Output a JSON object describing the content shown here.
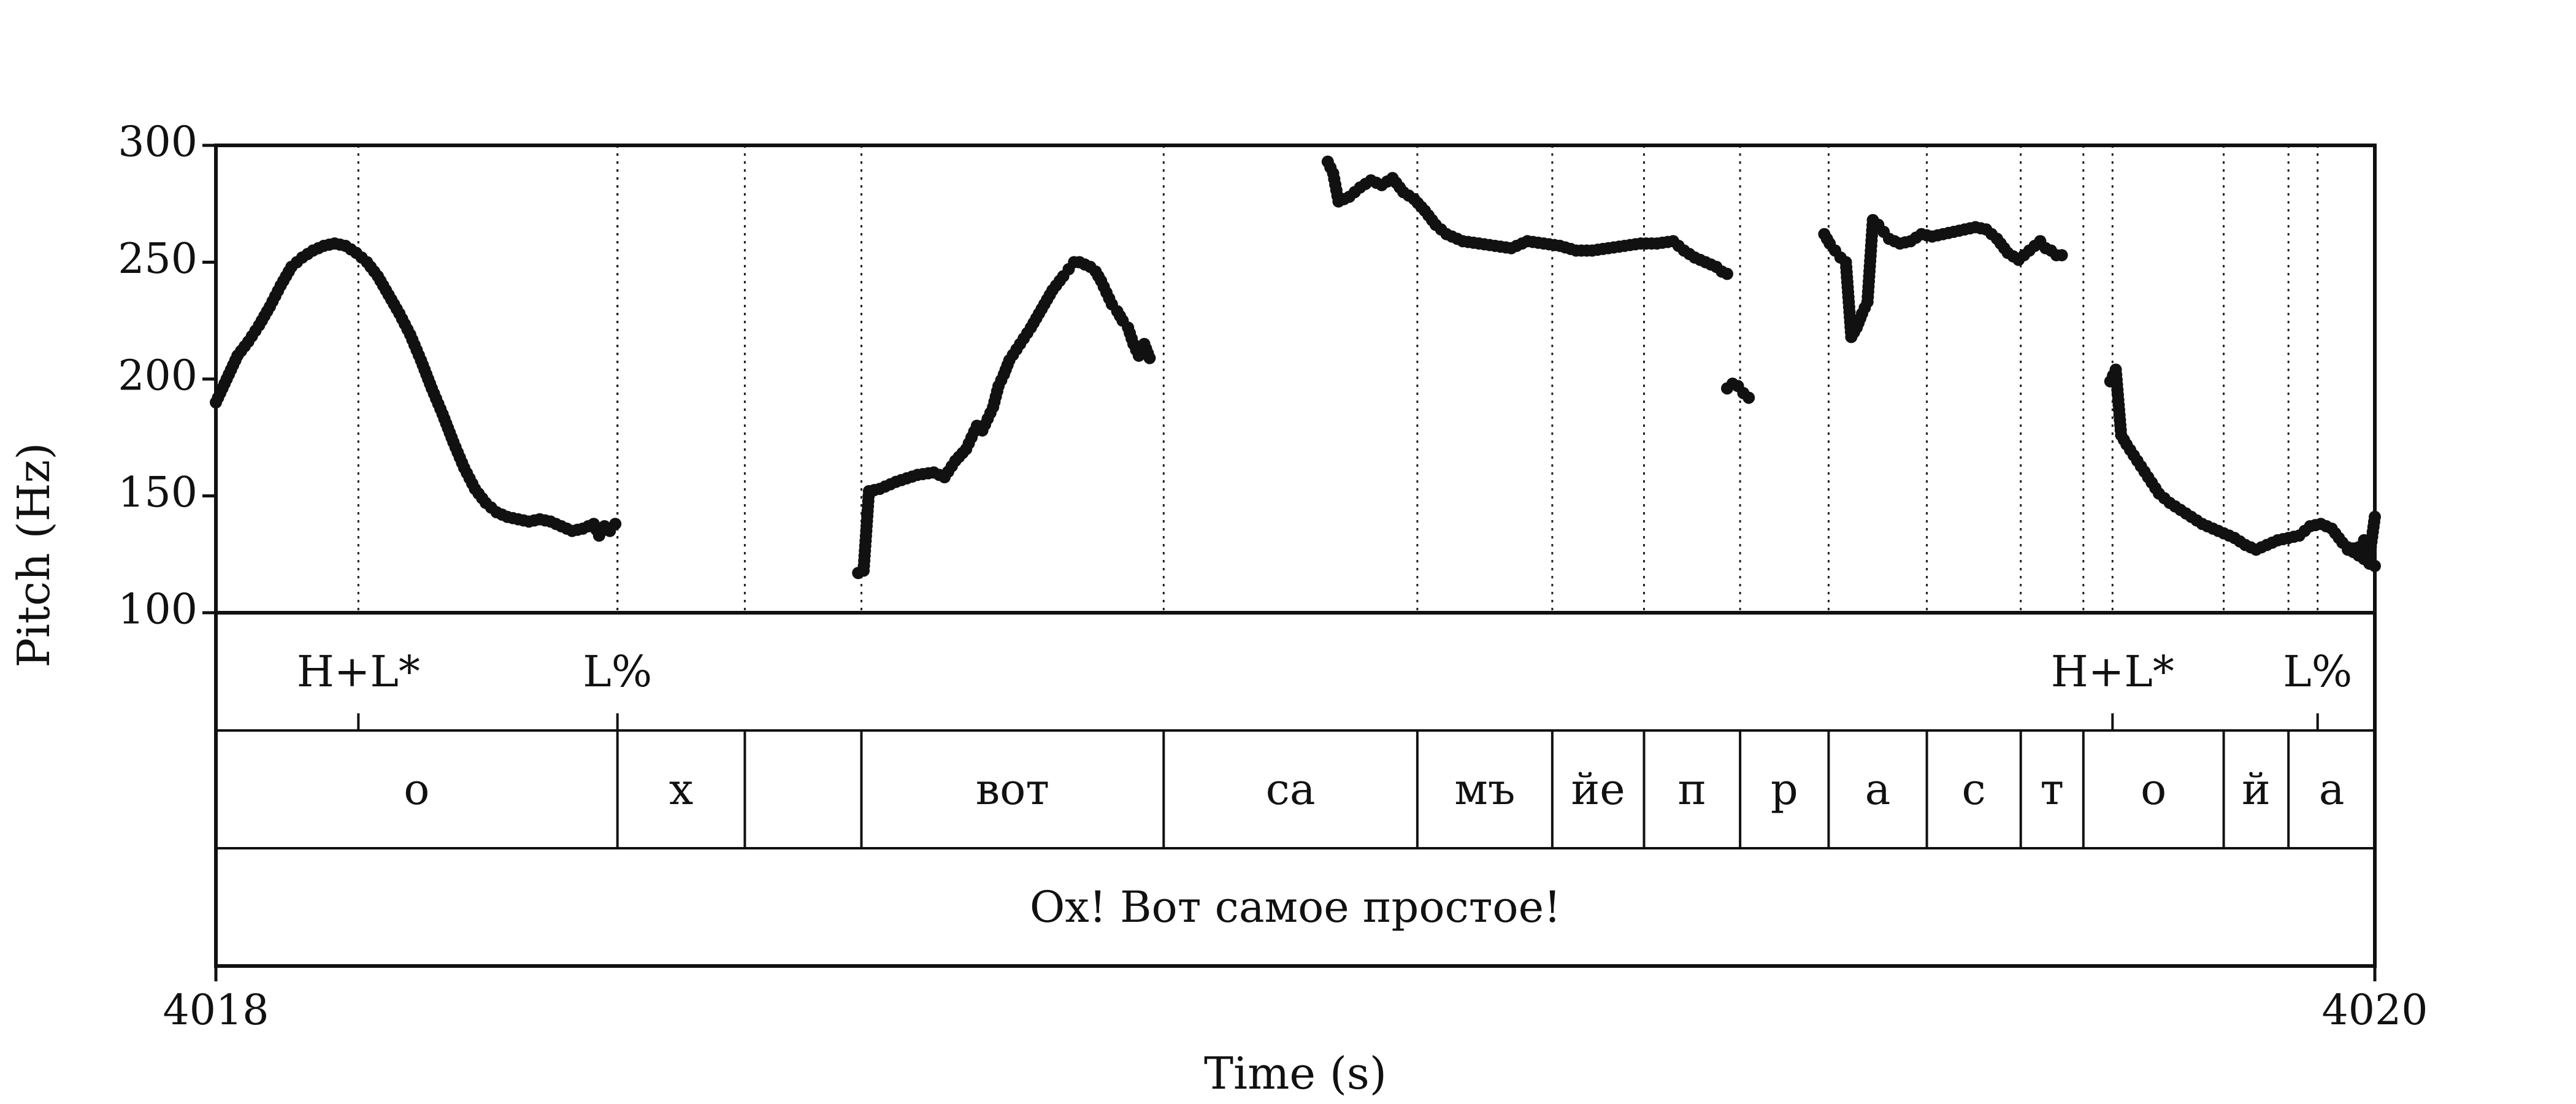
{
  "chart_data": {
    "type": "scatter",
    "title": "",
    "xlabel": "Time (s)",
    "ylabel": "Pitch (Hz)",
    "xlim": [
      4018,
      4020
    ],
    "ylim": [
      100,
      300
    ],
    "x_ticks": [
      "4018",
      "4020"
    ],
    "y_ticks": [
      "100",
      "150",
      "200",
      "250",
      "300"
    ],
    "grid": false,
    "legend": "none",
    "colors": {
      "points": "#111111",
      "axis": "#111111",
      "boundary": "#222222"
    },
    "pitch_contours": [
      {
        "x": [
          4018.0,
          4018.01,
          4018.02,
          4018.03,
          4018.04,
          4018.05,
          4018.06,
          4018.07,
          4018.08,
          4018.09,
          4018.1,
          4018.11,
          4018.12,
          4018.13,
          4018.14,
          4018.15,
          4018.16,
          4018.17,
          4018.18,
          4018.19,
          4018.2,
          4018.21,
          4018.22,
          4018.23,
          4018.24,
          4018.25,
          4018.26,
          4018.27,
          4018.28,
          4018.29,
          4018.3,
          4018.31,
          4018.32,
          4018.33,
          4018.34,
          4018.35,
          4018.355,
          4018.36,
          4018.365,
          4018.37
        ],
        "y": [
          190,
          200,
          210,
          216,
          223,
          231,
          240,
          248,
          252,
          255,
          257,
          258,
          257,
          254,
          250,
          244,
          236,
          228,
          219,
          208,
          196,
          185,
          173,
          162,
          153,
          147,
          143,
          141,
          140,
          139,
          140,
          139,
          137,
          135,
          136,
          138,
          133,
          137,
          135,
          138
        ]
      },
      {
        "x": [
          4018.595,
          4018.6,
          4018.605,
          4018.615,
          4018.63,
          4018.65,
          4018.665,
          4018.675,
          4018.685,
          4018.695,
          4018.7,
          4018.705,
          4018.71,
          4018.715,
          4018.72,
          4018.725,
          4018.73,
          4018.735,
          4018.745,
          4018.755,
          4018.765,
          4018.775,
          4018.785,
          4018.79,
          4018.795,
          4018.8,
          4018.805,
          4018.81,
          4018.815,
          4018.82,
          4018.825,
          4018.83,
          4018.835,
          4018.84,
          4018.845,
          4018.85,
          4018.855,
          4018.86,
          4018.865
        ],
        "y": [
          117,
          118,
          152,
          153,
          156,
          159,
          160,
          158,
          165,
          170,
          175,
          180,
          178,
          183,
          188,
          197,
          202,
          208,
          215,
          222,
          230,
          238,
          244,
          247,
          250,
          250,
          249,
          248,
          246,
          242,
          237,
          232,
          229,
          225,
          222,
          215,
          210,
          215,
          209
        ]
      },
      {
        "x": [
          4019.03,
          4019.035,
          4019.04,
          4019.05,
          4019.06,
          4019.07,
          4019.08,
          4019.09,
          4019.1,
          4019.11,
          4019.12,
          4019.13,
          4019.14,
          4019.155,
          4019.17,
          4019.185,
          4019.2,
          4019.215,
          4019.23,
          4019.245,
          4019.26,
          4019.275,
          4019.29,
          4019.305,
          4019.32,
          4019.335,
          4019.35,
          4019.36,
          4019.37,
          4019.38,
          4019.39,
          4019.395,
          4019.4
        ],
        "y": [
          293,
          288,
          276,
          278,
          282,
          285,
          283,
          286,
          280,
          277,
          272,
          266,
          262,
          259,
          258,
          257,
          256,
          259,
          258,
          257,
          255,
          255,
          256,
          257,
          258,
          258,
          259,
          255,
          252,
          250,
          248,
          246,
          245
        ]
      },
      {
        "x": [
          4019.4,
          4019.405,
          4019.41,
          4019.415,
          4019.42
        ],
        "y": [
          196,
          198,
          197,
          194,
          192
        ]
      },
      {
        "x": [
          4019.49,
          4019.495,
          4019.5,
          4019.505,
          4019.51,
          4019.515,
          4019.52,
          4019.525,
          4019.53,
          4019.535,
          4019.54,
          4019.545,
          4019.55,
          4019.56,
          4019.57,
          4019.58,
          4019.59,
          4019.6,
          4019.61,
          4019.62,
          4019.63,
          4019.64,
          4019.65,
          4019.66,
          4019.67,
          4019.68,
          4019.69,
          4019.695,
          4019.7,
          4019.705,
          4019.71
        ],
        "y": [
          262,
          258,
          255,
          252,
          250,
          218,
          222,
          228,
          233,
          268,
          266,
          263,
          260,
          258,
          259,
          262,
          261,
          262,
          263,
          264,
          265,
          264,
          260,
          254,
          251,
          255,
          259,
          256,
          255,
          253,
          253
        ]
      },
      {
        "x": [
          4019.755,
          4019.76,
          4019.765,
          4019.77,
          4019.78,
          4019.79,
          4019.8,
          4019.81,
          4019.82,
          4019.83,
          4019.84,
          4019.85,
          4019.86,
          4019.87,
          4019.88,
          4019.89,
          4019.9,
          4019.91,
          4019.92,
          4019.93,
          4019.935,
          4019.94,
          4019.95,
          4019.96,
          4019.97,
          4019.98,
          4019.99,
          4019.995,
          4020.0
        ],
        "y": [
          199,
          204,
          176,
          172,
          165,
          158,
          151,
          147,
          144,
          141,
          138,
          136,
          134,
          132,
          129,
          127,
          129,
          131,
          132,
          133,
          135,
          137,
          138,
          136,
          130,
          126,
          123,
          121,
          120
        ]
      },
      {
        "x": [
          4019.975,
          4019.985,
          4019.99,
          4019.995,
          4020.0
        ],
        "y": [
          127,
          128,
          131,
          124,
          141
        ]
      }
    ],
    "tiers": [
      {
        "name": "tones",
        "intervals": [],
        "points": [
          {
            "time": 4018.132,
            "label": "H+L*"
          },
          {
            "time": 4018.372,
            "label": "L%"
          },
          {
            "time": 4019.757,
            "label": "H+L*"
          },
          {
            "time": 4019.947,
            "label": "L%"
          }
        ]
      },
      {
        "name": "segments",
        "intervals": [
          {
            "start": 4018.0,
            "end": 4018.372,
            "label": "о"
          },
          {
            "start": 4018.372,
            "end": 4018.49,
            "label": "х"
          },
          {
            "start": 4018.49,
            "end": 4018.598,
            "label": ""
          },
          {
            "start": 4018.598,
            "end": 4018.878,
            "label": "вот"
          },
          {
            "start": 4018.878,
            "end": 4019.113,
            "label": "са"
          },
          {
            "start": 4019.113,
            "end": 4019.238,
            "label": "мъ"
          },
          {
            "start": 4019.238,
            "end": 4019.323,
            "label": "йе"
          },
          {
            "start": 4019.323,
            "end": 4019.412,
            "label": "п"
          },
          {
            "start": 4019.412,
            "end": 4019.494,
            "label": "р"
          },
          {
            "start": 4019.494,
            "end": 4019.585,
            "label": "а"
          },
          {
            "start": 4019.585,
            "end": 4019.672,
            "label": "с"
          },
          {
            "start": 4019.672,
            "end": 4019.73,
            "label": "т"
          },
          {
            "start": 4019.73,
            "end": 4019.86,
            "label": "о"
          },
          {
            "start": 4019.86,
            "end": 4019.92,
            "label": "й"
          },
          {
            "start": 4019.92,
            "end": 4020.0,
            "label": "а"
          }
        ],
        "points": []
      },
      {
        "name": "sentence",
        "intervals": [
          {
            "start": 4018.0,
            "end": 4020.0,
            "label": "Ох! Вот самое простое!"
          }
        ],
        "points": []
      }
    ]
  }
}
